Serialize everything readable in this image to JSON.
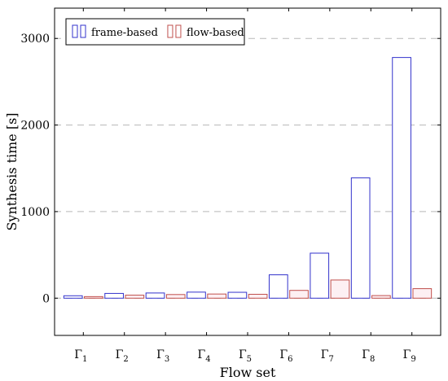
{
  "chart_data": {
    "type": "bar",
    "title": "",
    "xlabel": "Flow set",
    "ylabel": "Synthesis time [s]",
    "categories": [
      {
        "base": "Γ",
        "sub": "1"
      },
      {
        "base": "Γ",
        "sub": "2"
      },
      {
        "base": "Γ",
        "sub": "3"
      },
      {
        "base": "Γ",
        "sub": "4"
      },
      {
        "base": "Γ",
        "sub": "5"
      },
      {
        "base": "Γ",
        "sub": "6"
      },
      {
        "base": "Γ",
        "sub": "7"
      },
      {
        "base": "Γ",
        "sub": "8"
      },
      {
        "base": "Γ",
        "sub": "9"
      }
    ],
    "series": [
      {
        "name": "frame-based",
        "color": "#3333cc",
        "values": [
          28,
          55,
          60,
          70,
          68,
          270,
          520,
          1390,
          2780
        ]
      },
      {
        "name": "flow-based",
        "color": "#c0504d",
        "values": [
          18,
          35,
          42,
          48,
          45,
          90,
          210,
          30,
          110
        ]
      }
    ],
    "ylim": [
      -430,
      3350
    ],
    "xlim": [
      0.3,
      9.7
    ],
    "yticks": [
      0,
      1000,
      2000,
      3000
    ],
    "grid": true,
    "legend_position": "top-left"
  }
}
